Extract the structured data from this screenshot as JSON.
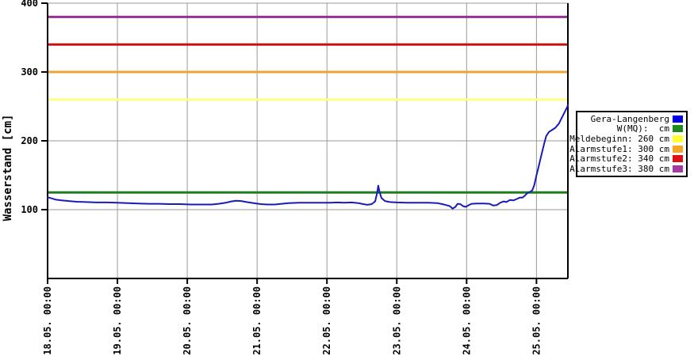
{
  "chart_data": {
    "type": "line",
    "title": "",
    "ylabel": "Wasserstand [cm]",
    "xlabel": "",
    "ylim": [
      0,
      400
    ],
    "yticks": [
      100,
      200,
      300,
      400
    ],
    "xtick_labels": [
      "18.05. 00:00",
      "19.05. 00:00",
      "20.05. 00:00",
      "21.05. 00:00",
      "22.05. 00:00",
      "23.05. 00:00",
      "24.05. 00:00",
      "25.05. 00:00"
    ],
    "x_extent_days": 7.45,
    "grid": true,
    "grid_color": "#9a9a9a",
    "axis_color": "#000000",
    "series": {
      "name": "Gera-Langenberg",
      "unit": "cm",
      "color": "#1a1ab8",
      "points_day_cm": [
        [
          0,
          118
        ],
        [
          0.05,
          116.5
        ],
        [
          0.12,
          114.5
        ],
        [
          0.2,
          113.5
        ],
        [
          0.3,
          112.5
        ],
        [
          0.42,
          111.5
        ],
        [
          0.55,
          111
        ],
        [
          0.7,
          110.5
        ],
        [
          0.85,
          110.5
        ],
        [
          1.0,
          110
        ],
        [
          1.15,
          109.5
        ],
        [
          1.3,
          109
        ],
        [
          1.45,
          108.5
        ],
        [
          1.6,
          108.5
        ],
        [
          1.75,
          108
        ],
        [
          1.9,
          108
        ],
        [
          2.05,
          107.5
        ],
        [
          2.2,
          107.5
        ],
        [
          2.35,
          107.5
        ],
        [
          2.45,
          108.5
        ],
        [
          2.55,
          110
        ],
        [
          2.63,
          112
        ],
        [
          2.7,
          113
        ],
        [
          2.77,
          112.5
        ],
        [
          2.85,
          111
        ],
        [
          2.95,
          109.5
        ],
        [
          3.05,
          108
        ],
        [
          3.15,
          107.5
        ],
        [
          3.25,
          107.5
        ],
        [
          3.35,
          108.5
        ],
        [
          3.45,
          109.5
        ],
        [
          3.6,
          110
        ],
        [
          3.75,
          110
        ],
        [
          3.9,
          110
        ],
        [
          4.05,
          110
        ],
        [
          4.15,
          110.5
        ],
        [
          4.25,
          110
        ],
        [
          4.35,
          110.5
        ],
        [
          4.45,
          109.5
        ],
        [
          4.52,
          108
        ],
        [
          4.58,
          107
        ],
        [
          4.64,
          108
        ],
        [
          4.69,
          112
        ],
        [
          4.72,
          125
        ],
        [
          4.735,
          135
        ],
        [
          4.75,
          127
        ],
        [
          4.78,
          117
        ],
        [
          4.83,
          112.5
        ],
        [
          4.9,
          111
        ],
        [
          5.0,
          110.5
        ],
        [
          5.15,
          110
        ],
        [
          5.3,
          110
        ],
        [
          5.45,
          110
        ],
        [
          5.58,
          109.5
        ],
        [
          5.65,
          108
        ],
        [
          5.71,
          106.5
        ],
        [
          5.76,
          105
        ],
        [
          5.8,
          101.5
        ],
        [
          5.84,
          104
        ],
        [
          5.87,
          108.5
        ],
        [
          5.91,
          108
        ],
        [
          5.95,
          105
        ],
        [
          5.99,
          104
        ],
        [
          6.03,
          106.5
        ],
        [
          6.07,
          108.5
        ],
        [
          6.15,
          109
        ],
        [
          6.25,
          109
        ],
        [
          6.33,
          108.5
        ],
        [
          6.38,
          106
        ],
        [
          6.43,
          106.5
        ],
        [
          6.48,
          110
        ],
        [
          6.53,
          112
        ],
        [
          6.57,
          111
        ],
        [
          6.62,
          114
        ],
        [
          6.67,
          113.5
        ],
        [
          6.72,
          115.5
        ],
        [
          6.76,
          117.5
        ],
        [
          6.8,
          117.5
        ],
        [
          6.84,
          121
        ],
        [
          6.87,
          124
        ],
        [
          6.91,
          126
        ],
        [
          6.94,
          128
        ],
        [
          6.97,
          136
        ],
        [
          7.0,
          150
        ],
        [
          7.03,
          162
        ],
        [
          7.07,
          179
        ],
        [
          7.11,
          196
        ],
        [
          7.14,
          207
        ],
        [
          7.18,
          213
        ],
        [
          7.22,
          215.5
        ],
        [
          7.27,
          219
        ],
        [
          7.32,
          225
        ],
        [
          7.36,
          233
        ],
        [
          7.4,
          241
        ],
        [
          7.44,
          249
        ],
        [
          7.45,
          252
        ]
      ]
    },
    "thresholds": [
      {
        "label": "W(MQ):  cm",
        "value_cm": 125,
        "color": "#1e7d1e"
      },
      {
        "label": "Meldebeginn: 260 cm",
        "value_cm": 260,
        "color": "#ffff80"
      },
      {
        "label": "Alarmstufe1: 300 cm",
        "value_cm": 300,
        "color": "#efa32e"
      },
      {
        "label": "Alarmstufe2: 340 cm",
        "value_cm": 340,
        "color": "#cc1111"
      },
      {
        "label": "Alarmstufe3: 380 cm",
        "value_cm": 380,
        "color": "#953095"
      }
    ],
    "legend": {
      "position": "right",
      "entries": [
        {
          "label": "Gera-Langenberg",
          "color": "#0000e0"
        },
        {
          "label": "W(MQ):  cm",
          "color": "#1e8a1e"
        },
        {
          "label": "Meldebeginn: 260 cm",
          "color": "#ffff33"
        },
        {
          "label": "Alarmstufe1: 300 cm",
          "color": "#f5a623"
        },
        {
          "label": "Alarmstufe2: 340 cm",
          "color": "#dd1111"
        },
        {
          "label": "Alarmstufe3: 380 cm",
          "color": "#a23ca2"
        }
      ]
    }
  }
}
